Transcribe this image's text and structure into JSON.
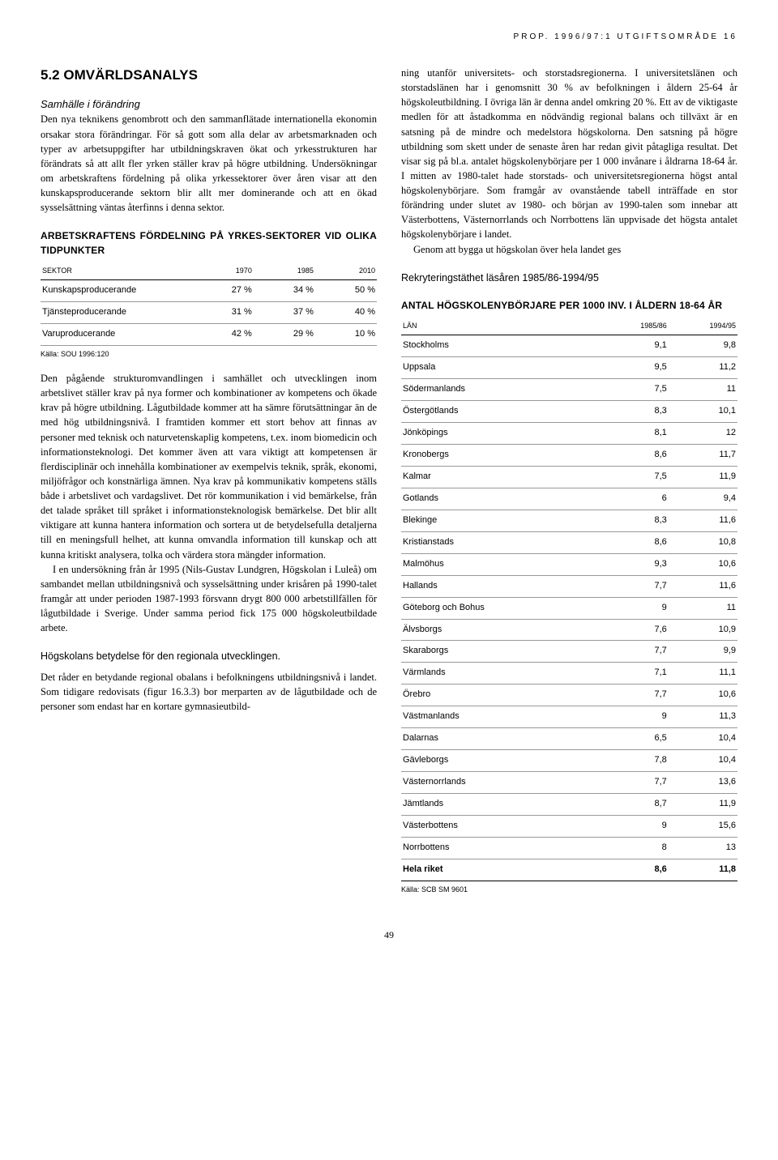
{
  "header": "PROP. 1996/97:1 UTGIFTSOMRÅDE 16",
  "left": {
    "section_no": "5.2",
    "section_title": "OMVÄRLDSANALYS",
    "sub_italic": "Samhälle i förändring",
    "p1": "Den nya teknikens genombrott och den sammanflätade internationella ekonomin orsakar stora förändringar. För så gott som alla delar av arbetsmarknaden och typer av arbetsuppgifter har utbildningskraven ökat och yrkesstrukturen har förändrats så att allt fler yrken ställer krav på högre utbildning. Undersökningar om arbetskraftens fördelning på olika yrkessektorer över åren visar att den kunskapsproducerande sektorn blir allt mer dominerande och att en ökad sysselsättning väntas återfinns i denna sektor.",
    "table1": {
      "title": "ARBETSKRAFTENS FÖRDELNING PÅ YRKES-SEKTORER VID OLIKA TIDPUNKTER",
      "headers": [
        "SEKTOR",
        "1970",
        "1985",
        "2010"
      ],
      "rows": [
        [
          "Kunskapsproducerande",
          "27 %",
          "34 %",
          "50 %"
        ],
        [
          "Tjänsteproducerande",
          "31 %",
          "37 %",
          "40 %"
        ],
        [
          "Varuproducerande",
          "42 %",
          "29 %",
          "10 %"
        ]
      ],
      "source": "Källa: SOU 1996:120"
    },
    "p2": "Den pågående strukturomvandlingen i samhället och utvecklingen inom arbetslivet ställer krav på nya former och kombinationer av kompetens och ökade krav på högre utbildning. Lågutbildade kommer att ha sämre förutsättningar än de med hög utbildningsnivå. I framtiden kommer ett stort behov att finnas av personer med teknisk och naturvetenskaplig kompetens, t.ex. inom biomedicin och informationsteknologi. Det kommer även att vara viktigt att kompetensen är flerdisciplinär och innehålla kombinationer av exempelvis teknik, språk, ekonomi, miljöfrågor och konstnärliga ämnen. Nya krav på kommunikativ kompetens ställs både i arbetslivet och vardagslivet. Det rör kommunikation i vid bemärkelse, från det talade språket till språket i informationsteknologisk bemärkelse. Det blir allt viktigare att kunna hantera information och sortera ut de betydelsefulla detaljerna till en meningsfull helhet, att kunna omvandla information till kunskap och att kunna kritiskt analysera, tolka och värdera stora mängder information.",
    "p3": "I en undersökning från år 1995 (Nils-Gustav Lundgren, Högskolan i Luleå) om sambandet mellan utbildningsnivå och sysselsättning under krisåren på 1990-talet framgår att under perioden 1987-1993 försvann drygt 800 000 arbetstillfällen för lågutbildade i Sverige. Under samma period fick 175 000 högskoleutbildade arbete.",
    "sub2": "Högskolans betydelse för den regionala utvecklingen.",
    "p4": "Det råder en betydande regional obalans i befolkningens utbildningsnivå i landet. Som tidigare redovisats (figur 16.3.3) bor merparten av de lågutbildade och de personer som endast har en kortare gymnasieutbild-"
  },
  "right": {
    "p1": "ning utanför universitets- och storstadsregionerna. I universitetslänen och storstadslänen har i genomsnitt 30 % av befolkningen i åldern 25-64 år högskoleutbildning. I övriga län är denna andel omkring 20 %. Ett av de viktigaste medlen för att åstadkomma en nödvändig regional balans och tillväxt är en satsning på de mindre och medelstora högskolorna. Den satsning på högre utbildning som skett under de senaste åren har redan givit påtagliga resultat. Det visar sig på bl.a. antalet högskolenybörjare per 1 000 invånare i åldrarna 18-64 år. I mitten av 1980-talet hade storstads- och universitetsregionerna högst antal högskolenybörjare. Som framgår av ovanstående tabell inträffade en stor förändring under slutet av 1980- och början av 1990-talen som innebar att Västerbottens, Västernorrlands och Norrbottens län uppvisade det högsta antalet högskolenybörjare i landet.",
    "p2": "Genom att bygga ut högskolan över hela landet ges",
    "chart_title": "Rekryteringstäthet läsåren 1985/86-1994/95",
    "table2": {
      "title": "ANTAL HÖGSKOLENYBÖRJARE PER 1000 INV. I ÅLDERN 18-64 ÅR",
      "headers": [
        "LÄN",
        "1985/86",
        "1994/95"
      ],
      "rows": [
        [
          "Stockholms",
          "9,1",
          "9,8"
        ],
        [
          "Uppsala",
          "9,5",
          "11,2"
        ],
        [
          "Södermanlands",
          "7,5",
          "11"
        ],
        [
          "Östergötlands",
          "8,3",
          "10,1"
        ],
        [
          "Jönköpings",
          "8,1",
          "12"
        ],
        [
          "Kronobergs",
          "8,6",
          "11,7"
        ],
        [
          "Kalmar",
          "7,5",
          "11,9"
        ],
        [
          "Gotlands",
          "6",
          "9,4"
        ],
        [
          "Blekinge",
          "8,3",
          "11,6"
        ],
        [
          "Kristianstads",
          "8,6",
          "10,8"
        ],
        [
          "Malmöhus",
          "9,3",
          "10,6"
        ],
        [
          "Hallands",
          "7,7",
          "11,6"
        ],
        [
          "Göteborg och Bohus",
          "9",
          "11"
        ],
        [
          "Älvsborgs",
          "7,6",
          "10,9"
        ],
        [
          "Skaraborgs",
          "7,7",
          "9,9"
        ],
        [
          "Värmlands",
          "7,1",
          "11,1"
        ],
        [
          "Örebro",
          "7,7",
          "10,6"
        ],
        [
          "Västmanlands",
          "9",
          "11,3"
        ],
        [
          "Dalarnas",
          "6,5",
          "10,4"
        ],
        [
          "Gävleborgs",
          "7,8",
          "10,4"
        ],
        [
          "Västernorrlands",
          "7,7",
          "13,6"
        ],
        [
          "Jämtlands",
          "8,7",
          "11,9"
        ],
        [
          "Västerbottens",
          "9",
          "15,6"
        ],
        [
          "Norrbottens",
          "8",
          "13"
        ]
      ],
      "total": [
        "Hela riket",
        "8,6",
        "11,8"
      ],
      "source": "Källa: SCB SM 9601"
    }
  },
  "page_number": "49"
}
